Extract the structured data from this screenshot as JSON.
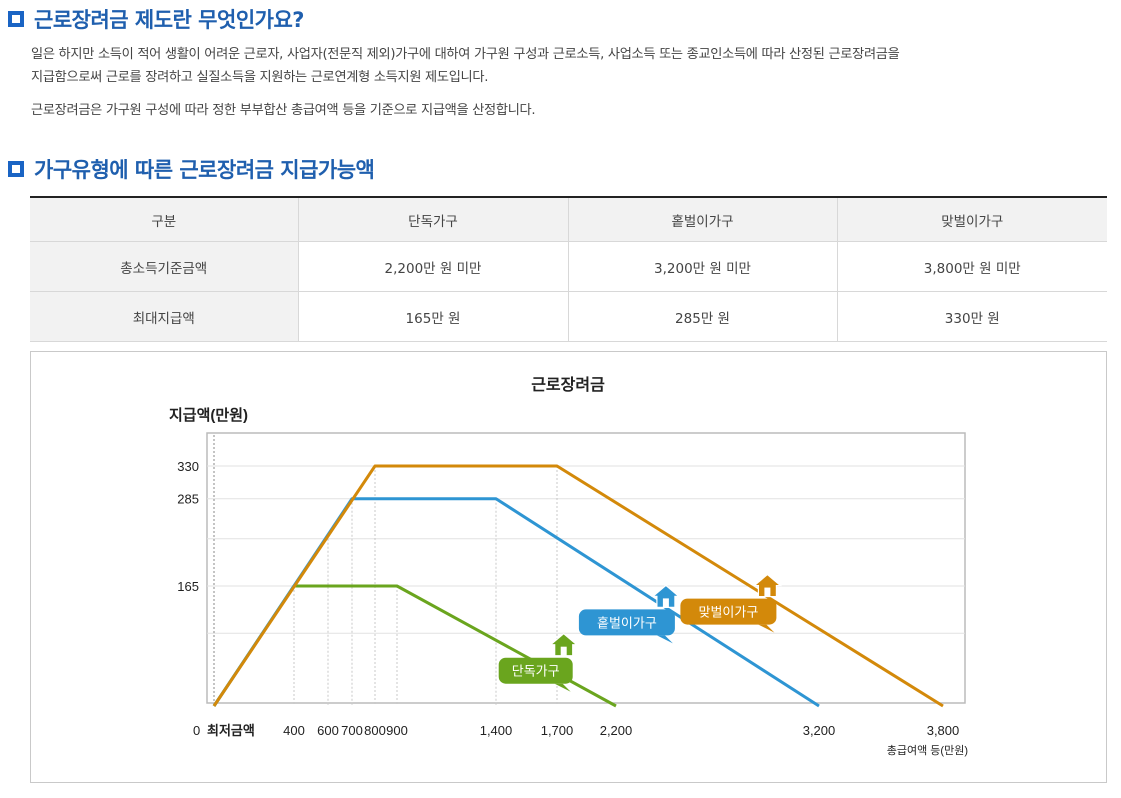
{
  "section1": {
    "title": "근로장려금 제도란 무엇인가요?",
    "para1_line1": "일은 하지만 소득이 적어 생활이 어려운 근로자, 사업자(전문직 제외)가구에 대하여 가구원 구성과 근로소득, 사업소득 또는 종교인소득에 따라 산정된 근로장려금을",
    "para1_line2": "지급함으로써 근로를 장려하고 실질소득을 지원하는 근로연계형 소득지원 제도입니다.",
    "para2": "근로장려금은 가구원 구성에 따라 정한 부부합산 총급여액 등을 기준으로 지급액을 산정합니다."
  },
  "section2": {
    "title": "가구유형에 따른 근로장려금 지급가능액"
  },
  "table": {
    "headers": [
      "구분",
      "단독가구",
      "홑벌이가구",
      "맞벌이가구"
    ],
    "rows": [
      [
        "총소득기준금액",
        "2,200만 원 미만",
        "3,200만 원 미만",
        "3,800만 원 미만"
      ],
      [
        "최대지급액",
        "165만 원",
        "285만 원",
        "330만 원"
      ]
    ]
  },
  "chart_data": {
    "type": "line",
    "title": "근로장려금",
    "ylabel": "지급액(만원)",
    "xlabel": "총급여액 등(만원)",
    "x_origin_label": "최저금액",
    "y_zero_label": "0",
    "ylim": [
      0,
      350
    ],
    "grid": true,
    "x_ticks": [
      400,
      600,
      700,
      800,
      900,
      1400,
      1700,
      2200,
      3200,
      3800
    ],
    "x_tick_labels": [
      "400",
      "600",
      "700",
      "800",
      "900",
      "1,400",
      "1,700",
      "2,200",
      "3,200",
      "3,800"
    ],
    "y_ticks": [
      165,
      285,
      330
    ],
    "y_tick_labels": [
      "165",
      "285",
      "330"
    ],
    "series": [
      {
        "name": "단독가구",
        "color": "#6aa51e",
        "icon": "house-icon",
        "x": [
          0,
          400,
          900,
          2200
        ],
        "y": [
          0,
          165,
          165,
          0
        ]
      },
      {
        "name": "홑벌이가구",
        "color": "#2e95d3",
        "icon": "house-icon",
        "x": [
          0,
          700,
          1400,
          3200
        ],
        "y": [
          0,
          285,
          285,
          0
        ]
      },
      {
        "name": "맞벌이가구",
        "color": "#d3890a",
        "icon": "house-icon",
        "x": [
          0,
          800,
          1700,
          3800
        ],
        "y": [
          0,
          330,
          330,
          0
        ]
      }
    ]
  }
}
